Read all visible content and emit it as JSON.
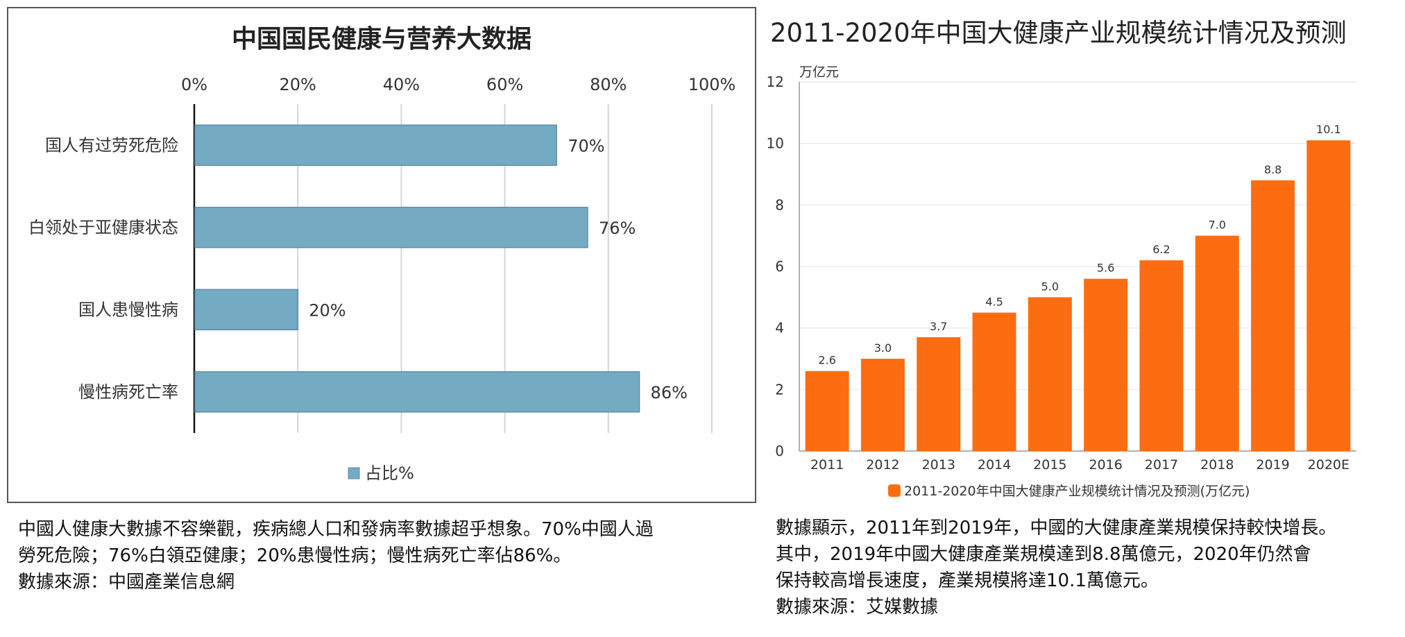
{
  "left_chart": {
    "title": "中国国民健康与营养大数据",
    "legend": "占比%",
    "colors": {
      "bar": "#74abc3",
      "bar_stroke": "#5b8fa8",
      "grid": "#d6d6d6",
      "axis": "#111111"
    }
  },
  "right_chart": {
    "title": "2011-2020年中国大健康产业规模统计情况及预测",
    "unit": "万亿元",
    "legend": "2011-2020年中国大健康产业规模统计情况及预测(万亿元)",
    "colors": {
      "bar": "#fc6d12",
      "grid": "#ececec",
      "axis": "#999999"
    }
  },
  "chart_data": [
    {
      "type": "bar",
      "orientation": "horizontal",
      "title": "中国国民健康与营养大数据",
      "categories": [
        "国人有过劳死危险",
        "白领处于亚健康状态",
        "国人患慢性病",
        "慢性病死亡率"
      ],
      "series": [
        {
          "name": "占比%",
          "values": [
            70,
            76,
            20,
            86
          ]
        }
      ],
      "data_labels": [
        "70%",
        "76%",
        "20%",
        "86%"
      ],
      "xlim": [
        0,
        100
      ],
      "x_ticks": [
        "0%",
        "20%",
        "40%",
        "60%",
        "80%",
        "100%"
      ],
      "grid": true,
      "legend_position": "bottom"
    },
    {
      "type": "bar",
      "orientation": "vertical",
      "title": "2011-2020年中国大健康产业规模统计情况及预测",
      "ylabel": "万亿元",
      "categories": [
        "2011",
        "2012",
        "2013",
        "2014",
        "2015",
        "2016",
        "2017",
        "2018",
        "2019",
        "2020E"
      ],
      "series": [
        {
          "name": "2011-2020年中国大健康产业规模统计情况及预测(万亿元)",
          "values": [
            2.6,
            3.0,
            3.7,
            4.5,
            5.0,
            5.6,
            6.2,
            7.0,
            8.8,
            10.1
          ]
        }
      ],
      "data_labels": [
        "2.6",
        "3.0",
        "3.7",
        "4.5",
        "5.0",
        "5.6",
        "6.2",
        "7.0",
        "8.8",
        "10.1"
      ],
      "ylim": [
        0,
        12
      ],
      "y_ticks": [
        "0",
        "2",
        "4",
        "6",
        "8",
        "10",
        "12"
      ],
      "grid": true,
      "legend_position": "bottom"
    }
  ],
  "captions": {
    "left": [
      "中國人健康大數據不容樂觀，疾病總人口和發病率數據超乎想象。70%中國人過",
      "勞死危險；76%白領亞健康；20%患慢性病；慢性病死亡率佔86%。",
      "數據來源：中國產業信息網"
    ],
    "right": [
      "數據顯示，2011年到2019年，中國的大健康產業規模保持較快增長。",
      "其中，2019年中國大健康產業規模達到8.8萬億元，2020年仍然會",
      "保持較高增長速度，產業規模將達10.1萬億元。",
      "數據來源：艾媒數據"
    ]
  }
}
